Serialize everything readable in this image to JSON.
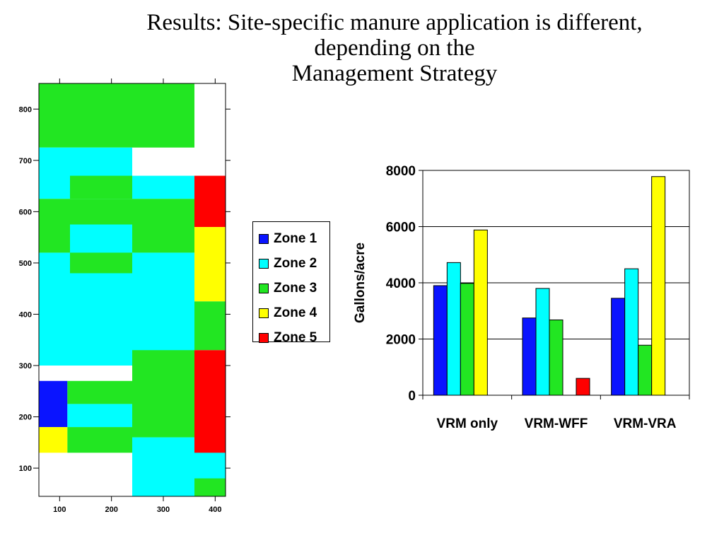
{
  "title": {
    "line1": "Results: Site-specific manure application is different,",
    "line2": "depending on the",
    "line3": "Management Strategy"
  },
  "colors": {
    "zone1": "#0a14ff",
    "zone2": "#00ffff",
    "zone3": "#22e622",
    "zone4": "#ffff00",
    "zone5": "#ff0000"
  },
  "legend": {
    "items": [
      {
        "label": "Zone 1",
        "color": "#0a14ff"
      },
      {
        "label": "Zone 2",
        "color": "#00ffff"
      },
      {
        "label": "Zone 3",
        "color": "#22e622"
      },
      {
        "label": "Zone 4",
        "color": "#ffff00"
      },
      {
        "label": "Zone 5",
        "color": "#ff0000"
      }
    ]
  },
  "chart_data": [
    {
      "type": "heatmap",
      "x_ticks": [
        "100",
        "200",
        "300",
        "400"
      ],
      "y_ticks": [
        "800",
        "700",
        "600",
        "500",
        "400",
        "300",
        "200",
        "100"
      ],
      "xlim": [
        60,
        420
      ],
      "ylim": [
        45,
        850
      ],
      "cells": [
        {
          "zone": "zone3",
          "x": [
            60,
            360
          ],
          "y": [
            725,
            850
          ]
        },
        {
          "zone": "zone2",
          "x": [
            60,
            240
          ],
          "y": [
            625,
            725
          ]
        },
        {
          "zone": "zone3",
          "x": [
            120,
            240
          ],
          "y": [
            625,
            670
          ]
        },
        {
          "zone": "zone2",
          "x": [
            240,
            360
          ],
          "y": [
            625,
            670
          ]
        },
        {
          "zone": "zone3",
          "x": [
            60,
            360
          ],
          "y": [
            520,
            625
          ]
        },
        {
          "zone": "zone2",
          "x": [
            120,
            240
          ],
          "y": [
            520,
            575
          ]
        },
        {
          "zone": "zone2",
          "x": [
            60,
            360
          ],
          "y": [
            300,
            520
          ]
        },
        {
          "zone": "zone3",
          "x": [
            120,
            240
          ],
          "y": [
            480,
            520
          ]
        },
        {
          "zone": "zone3",
          "x": [
            240,
            360
          ],
          "y": [
            160,
            330
          ]
        },
        {
          "zone": "zone1",
          "x": [
            60,
            115
          ],
          "y": [
            180,
            270
          ]
        },
        {
          "zone": "zone3",
          "x": [
            115,
            240
          ],
          "y": [
            225,
            270
          ]
        },
        {
          "zone": "zone2",
          "x": [
            115,
            240
          ],
          "y": [
            180,
            225
          ]
        },
        {
          "zone": "zone4",
          "x": [
            60,
            115
          ],
          "y": [
            130,
            180
          ]
        },
        {
          "zone": "zone3",
          "x": [
            115,
            240
          ],
          "y": [
            130,
            180
          ]
        },
        {
          "zone": "zone2",
          "x": [
            240,
            420
          ],
          "y": [
            45,
            160
          ]
        },
        {
          "zone": "zone3",
          "x": [
            360,
            420
          ],
          "y": [
            45,
            80
          ]
        },
        {
          "zone": "zone5",
          "x": [
            360,
            420
          ],
          "y": [
            570,
            670
          ]
        },
        {
          "zone": "zone4",
          "x": [
            360,
            420
          ],
          "y": [
            425,
            570
          ]
        },
        {
          "zone": "zone3",
          "x": [
            360,
            420
          ],
          "y": [
            330,
            425
          ]
        },
        {
          "zone": "zone5",
          "x": [
            360,
            420
          ],
          "y": [
            130,
            330
          ]
        }
      ]
    },
    {
      "type": "bar",
      "categories": [
        "VRM only",
        "VRM-WFF",
        "VRM-VRA"
      ],
      "ylabel": "Gallons/acre",
      "ylim": [
        0,
        8000
      ],
      "y_ticks": [
        "0",
        "2000",
        "4000",
        "6000",
        "8000"
      ],
      "grid": true,
      "series": [
        {
          "name": "Zone 1",
          "color": "#0a14ff",
          "values": [
            3900,
            2750,
            3450
          ]
        },
        {
          "name": "Zone 2",
          "color": "#00ffff",
          "values": [
            4720,
            3800,
            4500
          ]
        },
        {
          "name": "Zone 3",
          "color": "#22e622",
          "values": [
            3980,
            2680,
            1780
          ]
        },
        {
          "name": "Zone 4",
          "color": "#ffff00",
          "values": [
            5880,
            0,
            7780
          ]
        },
        {
          "name": "Zone 5",
          "color": "#ff0000",
          "values": [
            0,
            600,
            0
          ]
        }
      ]
    }
  ]
}
